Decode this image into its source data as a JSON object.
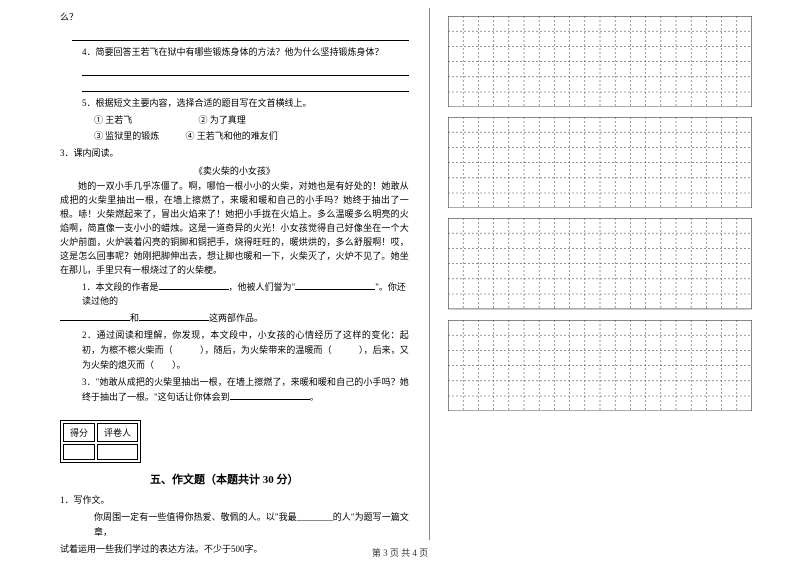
{
  "left": {
    "q_me": "么？",
    "q4": "4．简要回答王若飞在狱中有哪些锻炼身体的方法？他为什么坚持锻炼身体？",
    "q5": "5．根据短文主要内容，选择合适的题目写在文首横线上。",
    "q5_options": {
      "a": "① 王若飞",
      "b": "② 为了真理",
      "c": "③ 监狱里的锻炼",
      "d": "④ 王若飞和他的难友们"
    },
    "q3_title": "3．课内阅读。",
    "story_title": "《卖火柴的小女孩》",
    "story_body": "她的一双小手几乎冻僵了。啊，哪怕一根小小的火柴，对她也是有好处的！她敢从成把的火柴里抽出一根，在墙上擦燃了，来暖和暖和自己的小手吗？她终于抽出了一根。哧！火柴燃起来了，冒出火焰来了！她把小手拢在火焰上。多么温暖多么明亮的火焰啊，简直像一支小小的蜡烛。这是一道奇异的火光！小女孩觉得自己好像坐在一个大火炉前面，火炉装着闪亮的铜脚和铜把手，烧得旺旺的，暖烘烘的，多么舒服啊！哎，这是怎么回事呢？她刚把脚伸出去，想让脚也暖和一下，火柴灭了，火炉不见了。她坐在那儿，手里只有一根烧过了的火柴梗。",
    "sub1a": "1．本文段的作者是",
    "sub1b": "，他被人们誉为\"",
    "sub1c": "\"。你还读过他的",
    "sub1d": "和",
    "sub1e": "这两部作品。",
    "sub2": "2．通过阅读和理解，你发现，本文段中，小女孩的心情经历了这样的变化：起初，为檫不檫火柴而（　　　），随后，为火柴带来的温暖而（　　　），后来，又为火柴的熄灭而（　　）。",
    "sub3": "3．\"她敢从成把的火柴里抽出一根，在墙上擦燃了，来暖和暖和自己的小手吗？她终于抽出了一根。\"这句话让你体会到",
    "sub3_end": "。",
    "section5": "五、作文题（本题共计 30 分）",
    "score_labels": {
      "a": "得分",
      "b": "评卷人"
    },
    "essay_q": "1．写作文。",
    "essay_body1": "你周围一定有一些值得你热爱、敬佩的人。以\"我最________的人\"为题写一篇文章，",
    "essay_body2": "试着运用一些我们学过的表达方法。不少于500字。"
  },
  "grid": {
    "blocks": 4,
    "cols": 20,
    "rows_per_block": 6,
    "cell_size": 15.2,
    "stroke": "#555",
    "dash": "2,2",
    "stroke_width": 0.6
  },
  "footer": "第 3 页  共 4 页"
}
